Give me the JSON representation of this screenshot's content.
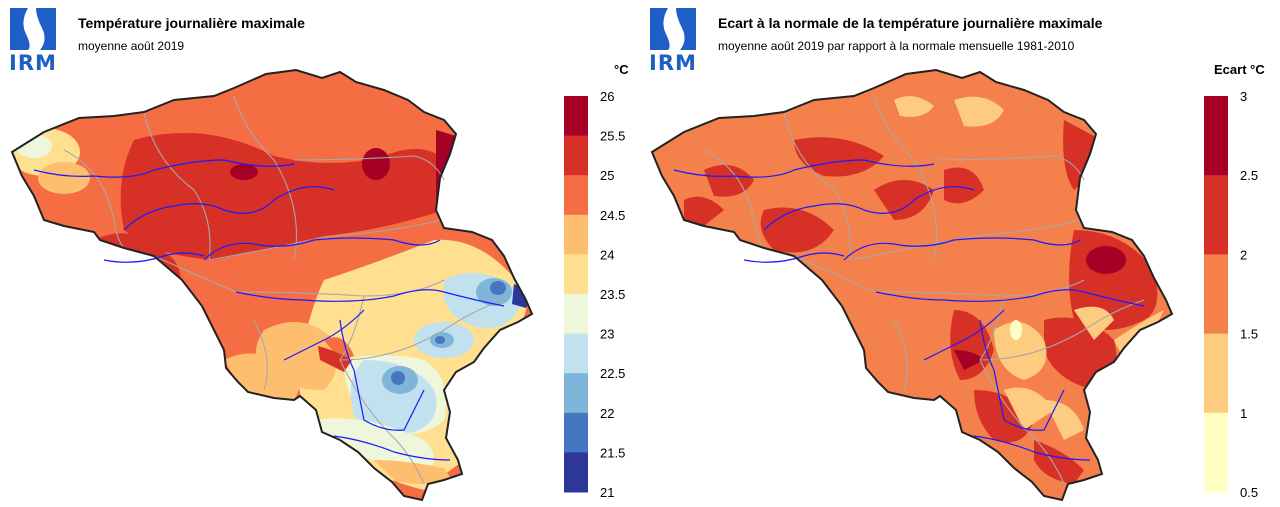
{
  "panels": [
    {
      "title": "Température journalière maximale",
      "subtitle": "moyenne août 2019",
      "logo_text": "IRM",
      "unit": "°C",
      "legend": {
        "labels": [
          "26",
          "25.5",
          "25",
          "24.5",
          "24",
          "23.5",
          "23",
          "22.5",
          "22",
          "21.5",
          "21"
        ],
        "colors": [
          "#a50026",
          "#d73027",
          "#f46d43",
          "#fdbf6f",
          "#fee090",
          "#eef6dc",
          "#c1e1ef",
          "#7fb5d8",
          "#4676c0",
          "#2c3797"
        ]
      }
    },
    {
      "title": "Ecart à la normale de la température journalière maximale",
      "subtitle": "moyenne août 2019 par rapport à la normale mensuelle 1981-2010",
      "logo_text": "IRM",
      "unit": "Ecart  °C",
      "legend": {
        "labels": [
          "3",
          "2.5",
          "2",
          "1.5",
          "1",
          "0.5"
        ],
        "colors": [
          "#a50026",
          "#d73027",
          "#f4804b",
          "#fdcc80",
          "#ffffc5"
        ]
      }
    }
  ],
  "colors": {
    "logo_blue": "#1d5fc6",
    "river": "#1a1aff",
    "province_border": "#a8a8a8",
    "country_border": "#222222"
  }
}
